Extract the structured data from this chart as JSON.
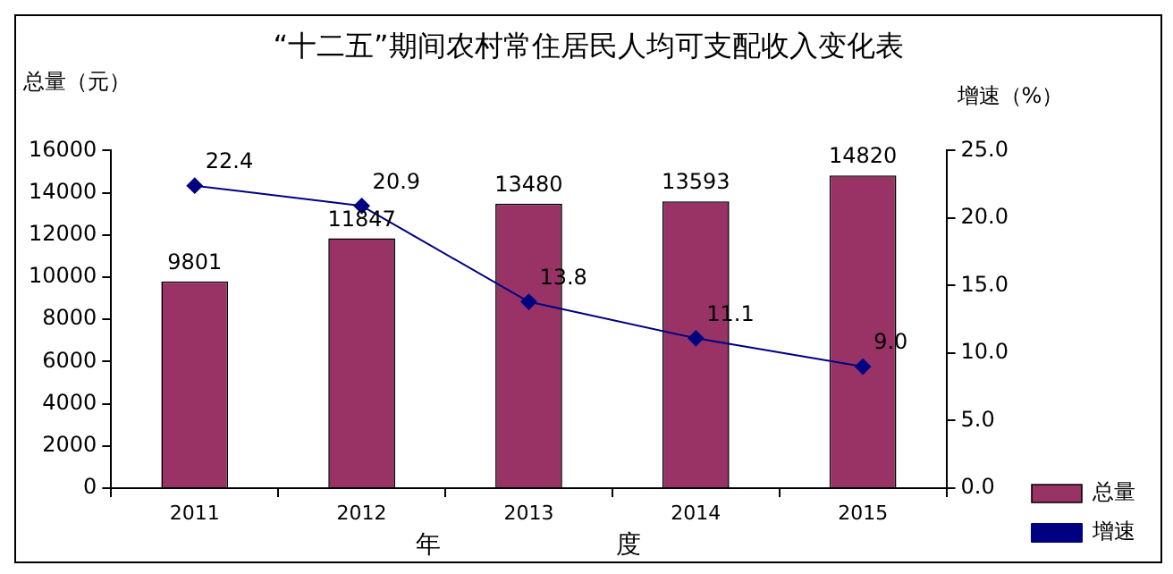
{
  "chart_data": {
    "type": "bar",
    "title": "“十二五”期间农村常住居民人均可支配收入变化表",
    "ylabel": "总量（元）",
    "y2label": "增速（%）",
    "xlabel": "年　　　　　　　度",
    "categories": [
      "2011",
      "2012",
      "2013",
      "2014",
      "2015"
    ],
    "series": [
      {
        "name": "总量",
        "color": "#993366",
        "values": [
          9801,
          11847,
          13480,
          13593,
          14820
        ]
      },
      {
        "name": "增速",
        "type": "line",
        "axis": "y2",
        "color": "#000080",
        "values": [
          22.4,
          20.9,
          13.8,
          11.1,
          9.0
        ],
        "value_labels": [
          "22.4",
          "20.9",
          "13.8",
          "11.1",
          "9.0"
        ],
        "marker": "diamond"
      }
    ],
    "ylim": [
      0,
      16000
    ],
    "yticks": [
      0,
      2000,
      4000,
      6000,
      8000,
      10000,
      12000,
      14000,
      16000
    ],
    "y2lim": [
      0,
      25
    ],
    "y2ticks": [
      {
        "value": 0,
        "label": "0.0"
      },
      {
        "value": 5,
        "label": "5.0"
      },
      {
        "value": 10,
        "label": "10.0"
      },
      {
        "value": 15,
        "label": "15.0"
      },
      {
        "value": 20,
        "label": "20.0"
      },
      {
        "value": 25,
        "label": "25.0"
      }
    ],
    "data_labels": true,
    "legend": "bottom right",
    "grid": false
  }
}
